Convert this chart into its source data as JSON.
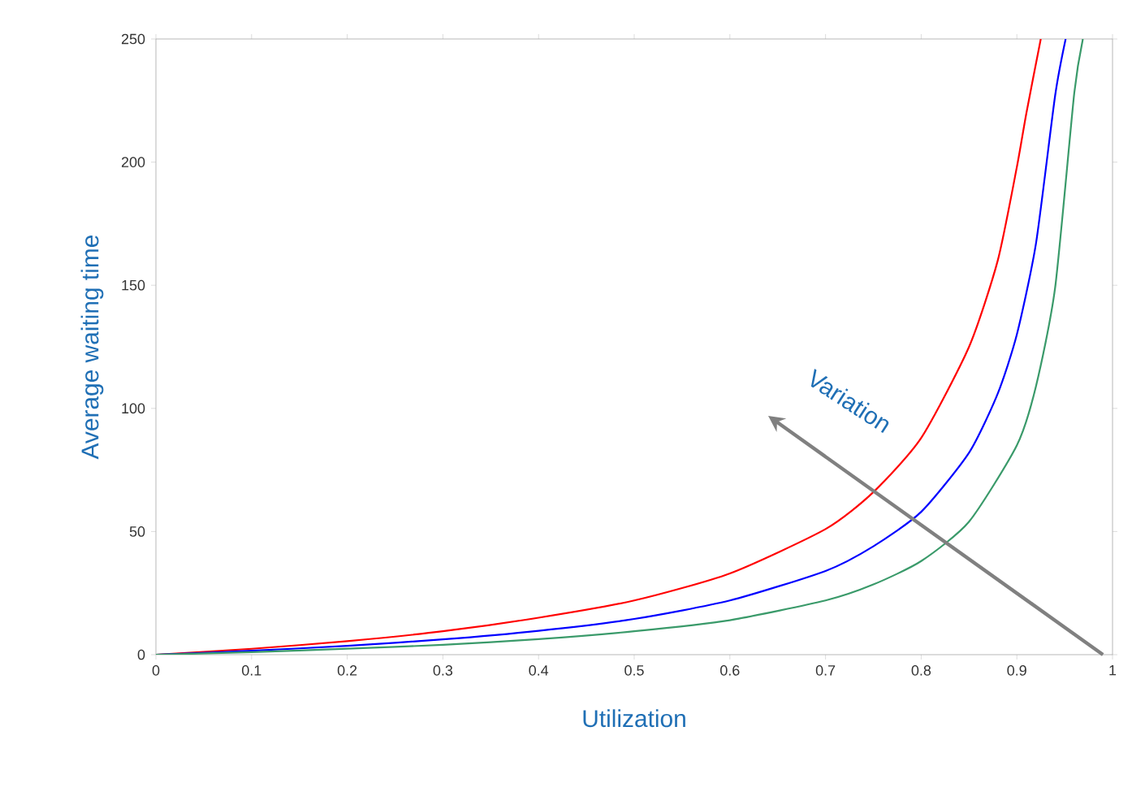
{
  "chart_data": {
    "type": "line",
    "xlabel": "Utilization",
    "ylabel": "Average waiting time",
    "annotations": [
      "Variation"
    ],
    "xlim": [
      0,
      1
    ],
    "ylim": [
      0,
      250
    ],
    "xticks": [
      0,
      0.1,
      0.2,
      0.3,
      0.4,
      0.5,
      0.6,
      0.7,
      0.8,
      0.9,
      1
    ],
    "yticks": [
      0,
      50,
      100,
      150,
      200,
      250
    ],
    "marker": "none",
    "line_style": "solid",
    "series": [
      {
        "color": "#ff0000",
        "x": [
          0,
          0.1,
          0.2,
          0.3,
          0.4,
          0.5,
          0.6,
          0.7,
          0.75,
          0.8,
          0.85,
          0.88,
          0.9,
          0.91,
          0.925
        ],
        "values": [
          0,
          2.4,
          5.5,
          9.5,
          15,
          22,
          33,
          51,
          66,
          88,
          125,
          160,
          198,
          220,
          250
        ]
      },
      {
        "color": "#0000ff",
        "x": [
          0,
          0.1,
          0.2,
          0.3,
          0.4,
          0.5,
          0.6,
          0.7,
          0.75,
          0.8,
          0.85,
          0.88,
          0.9,
          0.92,
          0.94,
          0.951
        ],
        "values": [
          0,
          1.6,
          3.6,
          6.2,
          9.7,
          14.5,
          22,
          34,
          44,
          58,
          82,
          106,
          130,
          167,
          227,
          250
        ]
      },
      {
        "color": "#3a9a6a",
        "x": [
          0,
          0.1,
          0.2,
          0.3,
          0.4,
          0.5,
          0.6,
          0.7,
          0.75,
          0.8,
          0.85,
          0.9,
          0.92,
          0.94,
          0.96,
          0.969
        ],
        "values": [
          0,
          1,
          2.4,
          4,
          6.3,
          9.5,
          14,
          22,
          28.5,
          38,
          54,
          85,
          109,
          149,
          228,
          250
        ]
      }
    ]
  }
}
